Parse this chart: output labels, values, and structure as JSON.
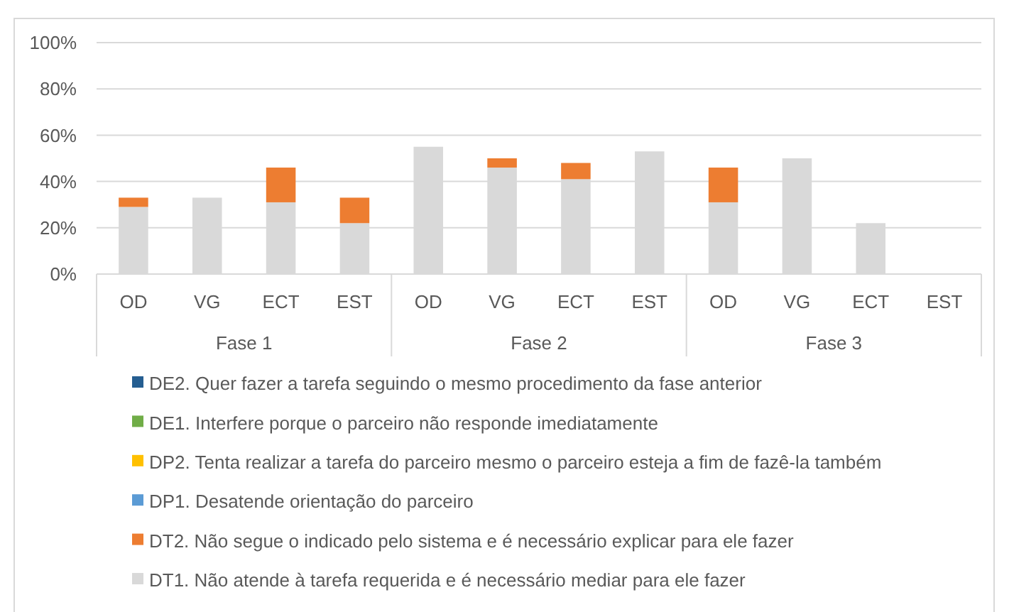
{
  "chart_data": {
    "type": "bar",
    "stacked": true,
    "categories": [
      "OD",
      "VG",
      "ECT",
      "EST",
      "OD",
      "VG",
      "ECT",
      "EST",
      "OD",
      "VG",
      "ECT",
      "EST"
    ],
    "annotations": [
      "Fase 1",
      "Fase 2",
      "Fase 3"
    ],
    "series": [
      {
        "name": "DT1. Não atende à tarefa requerida e é necessário mediar para ele fazer",
        "color": "#d9d9d9",
        "values": [
          29,
          33,
          31,
          22,
          55,
          46,
          41,
          53,
          31,
          50,
          22,
          0
        ]
      },
      {
        "name": "DT2. Não segue o indicado pelo sistema e é necessário explicar para ele fazer",
        "color": "#ed7d31",
        "values": [
          4,
          0,
          15,
          11,
          0,
          4,
          7,
          0,
          15,
          0,
          0,
          0
        ]
      },
      {
        "name": "DP1. Desatende orientação do parceiro",
        "color": "#5b9bd5",
        "values": [
          0,
          0,
          0,
          0,
          0,
          0,
          0,
          0,
          0,
          0,
          0,
          0
        ]
      },
      {
        "name": "DP2. Tenta realizar a tarefa do parceiro mesmo o parceiro esteja a fim de fazê-la também",
        "color": "#ffc000",
        "values": [
          0,
          0,
          0,
          0,
          0,
          0,
          0,
          0,
          0,
          0,
          0,
          0
        ]
      },
      {
        "name": "DE1. Interfere porque o parceiro não responde imediatamente",
        "color": "#70ad47",
        "values": [
          0,
          0,
          0,
          0,
          0,
          0,
          0,
          0,
          0,
          0,
          0,
          0
        ]
      },
      {
        "name": "DE2. Quer fazer a tarefa seguindo o mesmo procedimento da fase anterior",
        "color": "#255e91",
        "values": [
          0,
          0,
          0,
          0,
          0,
          0,
          0,
          0,
          0,
          0,
          0,
          0
        ]
      }
    ],
    "ylim": [
      0,
      100
    ],
    "yticks": [
      {
        "value": 0,
        "label": "0%"
      },
      {
        "value": 20,
        "label": "20%"
      },
      {
        "value": 40,
        "label": "40%"
      },
      {
        "value": 60,
        "label": "60%"
      },
      {
        "value": 80,
        "label": "80%"
      },
      {
        "value": 100,
        "label": "100%"
      }
    ],
    "grid": "y",
    "legend": "bottom"
  }
}
